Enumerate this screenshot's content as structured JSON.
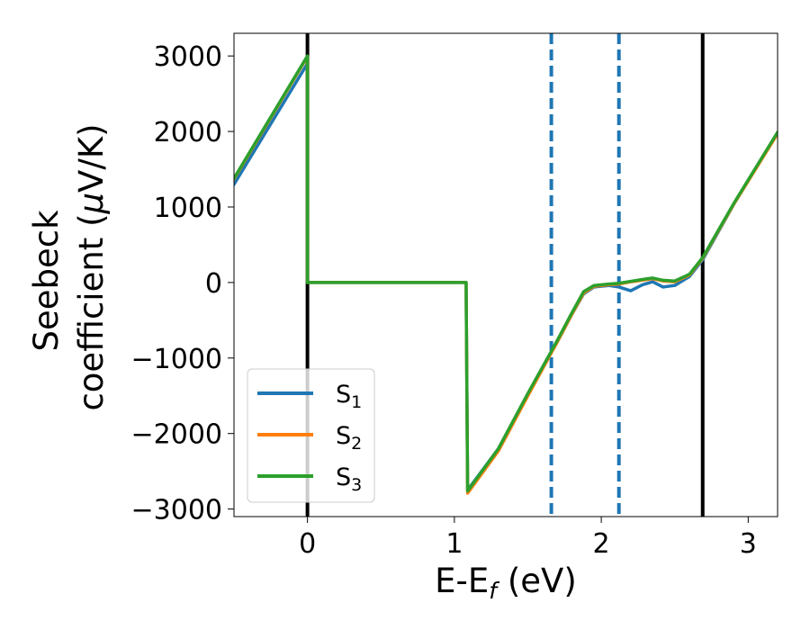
{
  "chart_data": {
    "type": "line",
    "xlabel": "E-E",
    "xlabel_sub": "f",
    "xlabel_unit": " (eV)",
    "ylabel_line1": "Seebeck",
    "ylabel_line2_prefix": "coefficient  (",
    "ylabel_mu": "μ",
    "ylabel_line2_suffix": "V/K)",
    "xlim": [
      -0.5,
      3.2
    ],
    "ylim": [
      -3100,
      3300
    ],
    "xticks": [
      0,
      1,
      2,
      3
    ],
    "yticks": [
      -3000,
      -2000,
      -1000,
      0,
      1000,
      2000,
      3000
    ],
    "xtick_labels": [
      "0",
      "1",
      "2",
      "3"
    ],
    "ytick_labels": [
      "−3000",
      "−2000",
      "−1000",
      "0",
      "1000",
      "2000",
      "3000"
    ],
    "grid": false,
    "legend_position": "lower-left",
    "vlines": [
      {
        "x": 0.0,
        "style": "solid",
        "color": "#000000"
      },
      {
        "x": 1.66,
        "style": "dashed",
        "color": "#1f77b4"
      },
      {
        "x": 2.12,
        "style": "dashed",
        "color": "#1f77b4"
      },
      {
        "x": 2.69,
        "style": "solid",
        "color": "#000000"
      }
    ],
    "series": [
      {
        "name": "S",
        "sub": "1",
        "color": "#1f77b4",
        "points": [
          [
            -0.5,
            1300
          ],
          [
            0.0,
            2900
          ],
          [
            0.0,
            0
          ],
          [
            1.08,
            0
          ],
          [
            1.09,
            -2750
          ],
          [
            1.3,
            -2200
          ],
          [
            1.5,
            -1480
          ],
          [
            1.7,
            -790
          ],
          [
            1.8,
            -420
          ],
          [
            1.88,
            -150
          ],
          [
            1.95,
            -60
          ],
          [
            2.05,
            -40
          ],
          [
            2.12,
            -60
          ],
          [
            2.2,
            -110
          ],
          [
            2.28,
            -30
          ],
          [
            2.35,
            10
          ],
          [
            2.42,
            -60
          ],
          [
            2.5,
            -40
          ],
          [
            2.6,
            80
          ],
          [
            2.69,
            300
          ],
          [
            2.9,
            1030
          ],
          [
            3.2,
            1980
          ]
        ]
      },
      {
        "name": "S",
        "sub": "2",
        "color": "#ff7f0e",
        "points": [
          [
            -0.5,
            1370
          ],
          [
            0.0,
            2990
          ],
          [
            0.0,
            0
          ],
          [
            1.08,
            0
          ],
          [
            1.09,
            -2790
          ],
          [
            1.3,
            -2230
          ],
          [
            1.5,
            -1500
          ],
          [
            1.7,
            -790
          ],
          [
            1.8,
            -420
          ],
          [
            1.88,
            -140
          ],
          [
            1.95,
            -50
          ],
          [
            2.05,
            -30
          ],
          [
            2.12,
            -20
          ],
          [
            2.2,
            10
          ],
          [
            2.28,
            30
          ],
          [
            2.35,
            50
          ],
          [
            2.42,
            20
          ],
          [
            2.5,
            10
          ],
          [
            2.6,
            100
          ],
          [
            2.69,
            320
          ],
          [
            2.9,
            1030
          ],
          [
            3.2,
            1970
          ]
        ]
      },
      {
        "name": "S",
        "sub": "3",
        "color": "#2ca02c",
        "points": [
          [
            -0.5,
            1380
          ],
          [
            0.0,
            3000
          ],
          [
            0.0,
            0
          ],
          [
            1.08,
            0
          ],
          [
            1.09,
            -2760
          ],
          [
            1.3,
            -2200
          ],
          [
            1.5,
            -1470
          ],
          [
            1.7,
            -770
          ],
          [
            1.8,
            -400
          ],
          [
            1.88,
            -120
          ],
          [
            1.95,
            -40
          ],
          [
            2.05,
            -20
          ],
          [
            2.12,
            -10
          ],
          [
            2.2,
            15
          ],
          [
            2.28,
            40
          ],
          [
            2.35,
            60
          ],
          [
            2.42,
            30
          ],
          [
            2.5,
            20
          ],
          [
            2.6,
            110
          ],
          [
            2.69,
            330
          ],
          [
            2.9,
            1040
          ],
          [
            3.2,
            1990
          ]
        ]
      }
    ]
  }
}
